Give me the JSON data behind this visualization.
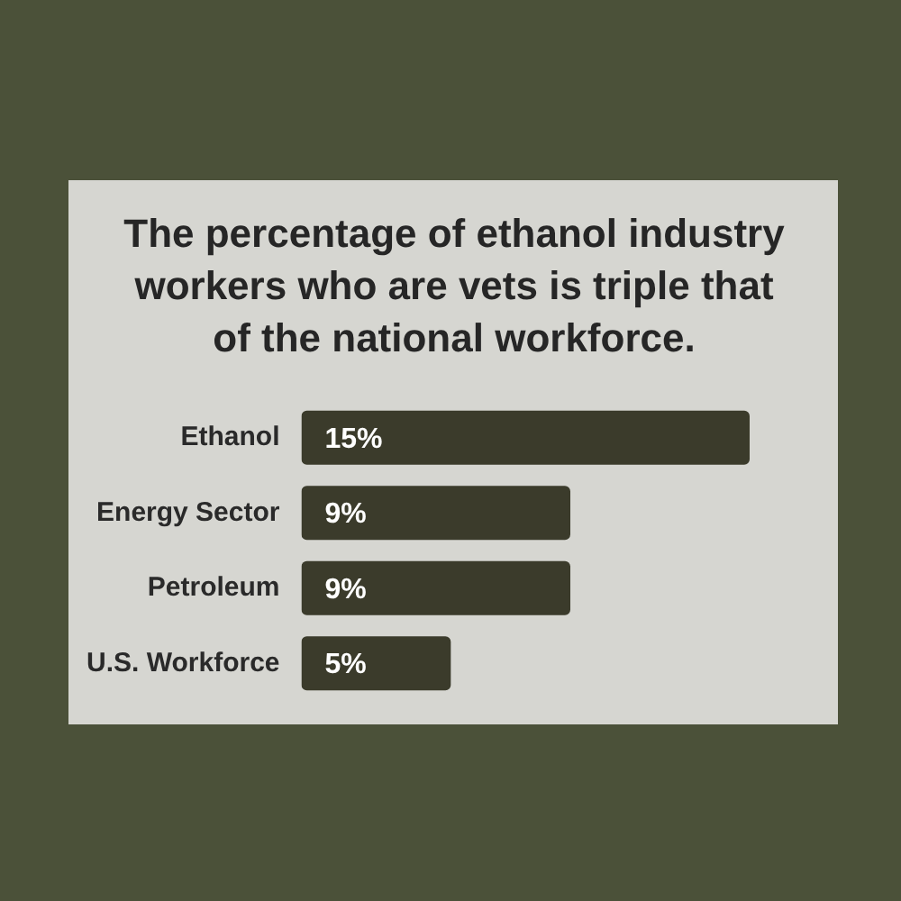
{
  "chart_data": {
    "type": "bar",
    "title": "The percentage of ethanol industry workers who are vets is triple that of the national workforce.",
    "categories": [
      "Ethanol",
      "Energy Sector",
      "Petroleum",
      "U.S. Workforce"
    ],
    "values": [
      15,
      9,
      9,
      5
    ],
    "value_labels": [
      "15%",
      "9%",
      "9%",
      "5%"
    ],
    "color": "#3b3b2b",
    "orientation": "horizontal",
    "tick_labels": "y"
  }
}
